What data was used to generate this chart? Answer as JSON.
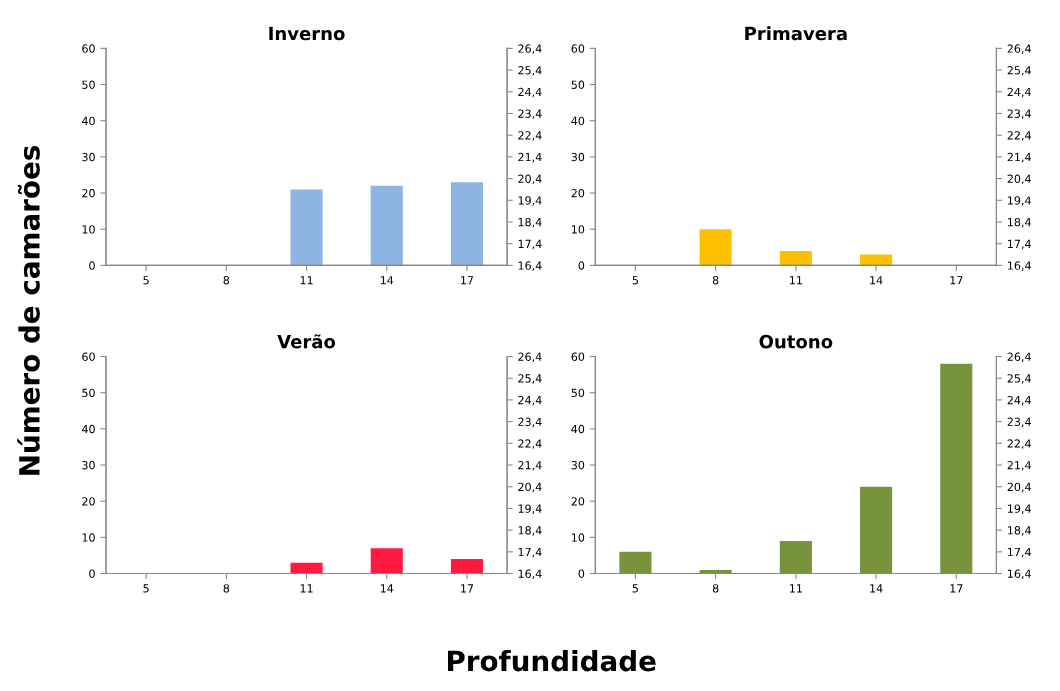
{
  "chart_data": [
    {
      "type": "bar",
      "title": "Inverno",
      "ylabel": "Número de camarões",
      "categories": [
        "5",
        "8",
        "11",
        "14",
        "17"
      ],
      "series": [
        {
          "color": "#8eb4e3",
          "values": [
            0,
            0,
            21,
            22,
            23
          ]
        }
      ],
      "ylim": [
        0,
        60
      ],
      "yticks": [
        0,
        10,
        20,
        30,
        40,
        50,
        60
      ],
      "y2lim": [
        16.4,
        26.4
      ],
      "y2ticks": [
        {
          "value": 16.4,
          "label": "16,4"
        },
        {
          "value": 17.4,
          "label": "17,4"
        },
        {
          "value": 18.4,
          "label": "18,4"
        },
        {
          "value": 19.4,
          "label": "19,4"
        },
        {
          "value": 20.4,
          "label": "20,4"
        },
        {
          "value": 21.4,
          "label": "21,4"
        },
        {
          "value": 22.4,
          "label": "22,4"
        },
        {
          "value": 23.4,
          "label": "23,4"
        },
        {
          "value": 24.4,
          "label": "24,4"
        },
        {
          "value": 25.4,
          "label": "25,4"
        },
        {
          "value": 26.4,
          "label": "26,4"
        }
      ],
      "grid": false
    },
    {
      "type": "bar",
      "title": "Primavera",
      "categories": [
        "5",
        "8",
        "11",
        "14",
        "17"
      ],
      "series": [
        {
          "color": "#ffc000",
          "values": [
            0,
            10,
            4,
            3,
            0
          ]
        }
      ],
      "ylim": [
        0,
        60
      ],
      "yticks": [
        0,
        10,
        20,
        30,
        40,
        50,
        60
      ],
      "y2lim": [
        16.4,
        26.4
      ],
      "y2ticks": [
        {
          "value": 16.4,
          "label": "16,4"
        },
        {
          "value": 17.4,
          "label": "17,4"
        },
        {
          "value": 18.4,
          "label": "18,4"
        },
        {
          "value": 19.4,
          "label": "19,4"
        },
        {
          "value": 20.4,
          "label": "20,4"
        },
        {
          "value": 21.4,
          "label": "21,4"
        },
        {
          "value": 22.4,
          "label": "22,4"
        },
        {
          "value": 23.4,
          "label": "23,4"
        },
        {
          "value": 24.4,
          "label": "24,4"
        },
        {
          "value": 25.4,
          "label": "25,4"
        },
        {
          "value": 26.4,
          "label": "26,4"
        }
      ],
      "grid": false
    },
    {
      "type": "bar",
      "title": "Verão",
      "xlabel": "Profundidade",
      "categories": [
        "5",
        "8",
        "11",
        "14",
        "17"
      ],
      "series": [
        {
          "color": "#ff1a40",
          "values": [
            0,
            0,
            3,
            7,
            4
          ]
        }
      ],
      "ylim": [
        0,
        60
      ],
      "yticks": [
        0,
        10,
        20,
        30,
        40,
        50,
        60
      ],
      "y2lim": [
        16.4,
        26.4
      ],
      "y2ticks": [
        {
          "value": 16.4,
          "label": "16,4"
        },
        {
          "value": 17.4,
          "label": "17,4"
        },
        {
          "value": 18.4,
          "label": "18,4"
        },
        {
          "value": 19.4,
          "label": "19,4"
        },
        {
          "value": 20.4,
          "label": "20,4"
        },
        {
          "value": 21.4,
          "label": "21,4"
        },
        {
          "value": 22.4,
          "label": "22,4"
        },
        {
          "value": 23.4,
          "label": "23,4"
        },
        {
          "value": 24.4,
          "label": "24,4"
        },
        {
          "value": 25.4,
          "label": "25,4"
        },
        {
          "value": 26.4,
          "label": "26,4"
        }
      ],
      "grid": false
    },
    {
      "type": "bar",
      "title": "Outono",
      "categories": [
        "5",
        "8",
        "11",
        "14",
        "17"
      ],
      "series": [
        {
          "color": "#77933c",
          "values": [
            6,
            1,
            9,
            24,
            58
          ]
        }
      ],
      "ylim": [
        0,
        60
      ],
      "yticks": [
        0,
        10,
        20,
        30,
        40,
        50,
        60
      ],
      "y2lim": [
        16.4,
        26.4
      ],
      "y2ticks": [
        {
          "value": 16.4,
          "label": "16,4"
        },
        {
          "value": 17.4,
          "label": "17,4"
        },
        {
          "value": 18.4,
          "label": "18,4"
        },
        {
          "value": 19.4,
          "label": "19,4"
        },
        {
          "value": 20.4,
          "label": "20,4"
        },
        {
          "value": 21.4,
          "label": "21,4"
        },
        {
          "value": 22.4,
          "label": "22,4"
        },
        {
          "value": 23.4,
          "label": "23,4"
        },
        {
          "value": 24.4,
          "label": "24,4"
        },
        {
          "value": 25.4,
          "label": "25,4"
        },
        {
          "value": 26.4,
          "label": "26,4"
        }
      ],
      "grid": false
    }
  ]
}
